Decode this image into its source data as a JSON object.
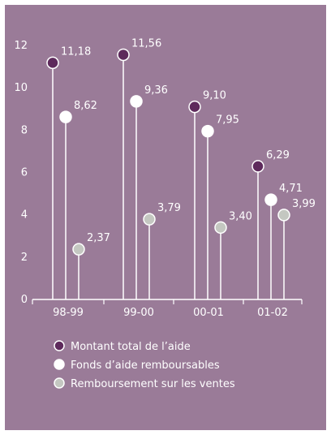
{
  "chart_data": {
    "type": "lollipop",
    "categories": [
      "98-99",
      "99-00",
      "00-01",
      "01-02"
    ],
    "series": [
      {
        "name": "Montant total de l’aide",
        "values": [
          11.18,
          11.56,
          9.1,
          6.29
        ],
        "labels": [
          "11,18",
          "11,56",
          "9,10",
          "6,29"
        ],
        "color": "#5e2a5c"
      },
      {
        "name": "Fonds d’aide remboursables",
        "values": [
          8.62,
          9.36,
          7.95,
          4.71
        ],
        "labels": [
          "8,62",
          "9,36",
          "7,95",
          "4,71"
        ],
        "color": "#ffffff"
      },
      {
        "name": "Remboursement sur les ventes",
        "values": [
          2.37,
          3.79,
          3.4,
          3.99
        ],
        "labels": [
          "2,37",
          "3,79",
          "3,40",
          "3,99"
        ],
        "color": "#c4c7c1"
      }
    ],
    "ylim": [
      0,
      12
    ],
    "yticks": [
      0,
      2,
      4,
      6,
      8,
      10,
      12
    ],
    "grid": false,
    "legend": "bottom",
    "colors": {
      "background": "#9a7b98",
      "text": "#ffffff",
      "axis": "#ffffff"
    }
  }
}
